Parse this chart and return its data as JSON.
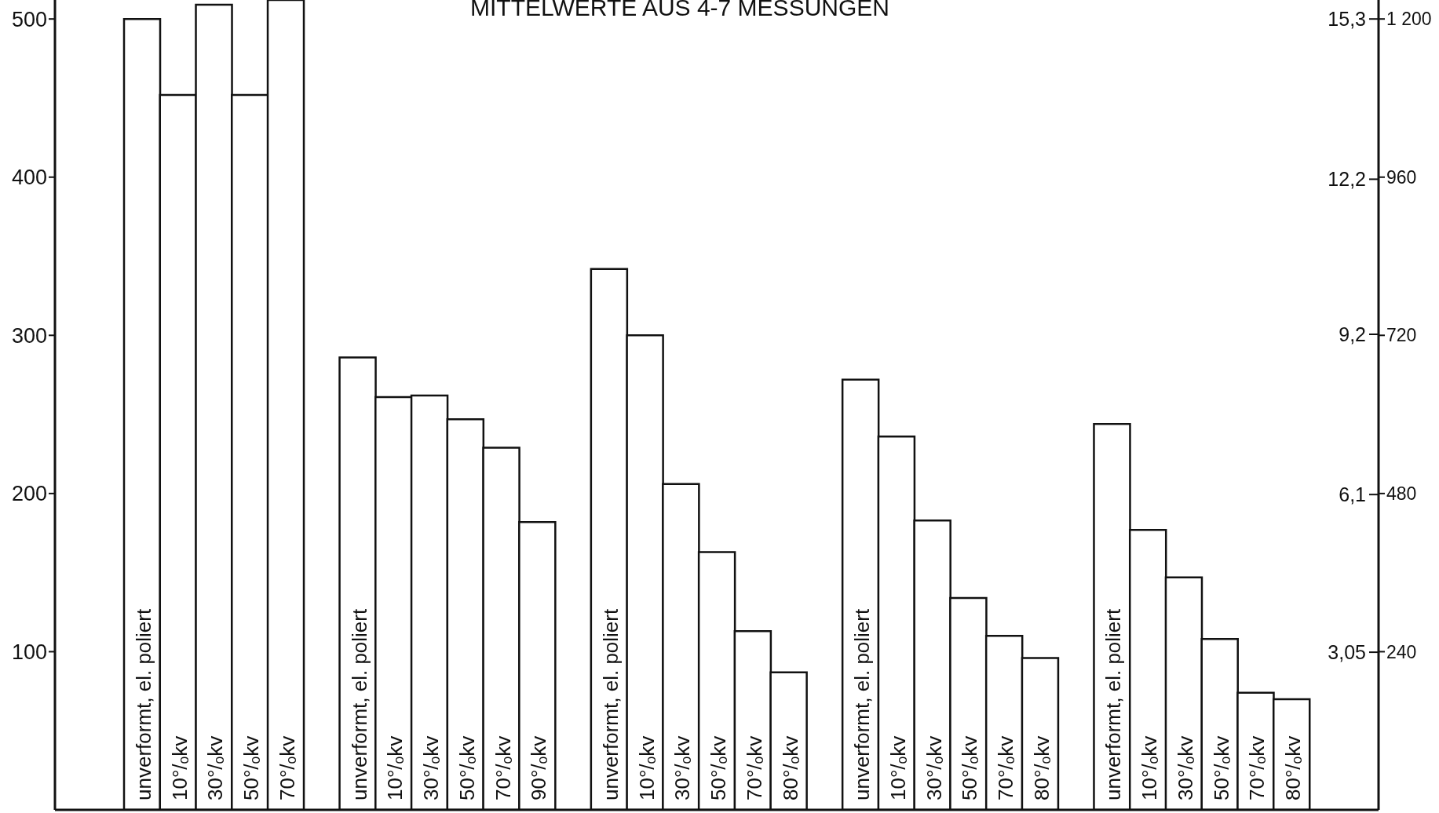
{
  "chart_data": {
    "type": "bar",
    "title": "MITTELWERTE AUS 4-7 MESSUNGEN",
    "categories": [
      "unverformt, el. poliert",
      "10°/ₒkv",
      "30°/ₒkv",
      "50°/ₒkv",
      "70°/ₒkv",
      null,
      "unverformt, el. poliert",
      "10°/ₒkv",
      "30°/ₒkv",
      "50°/ₒkv",
      "70°/ₒkv",
      "90°/ₒkv",
      null,
      "unverformt, el. poliert",
      "10°/ₒkv",
      "30°/ₒkv",
      "50°/ₒkv",
      "70°/ₒkv",
      "80°/ₒkv",
      null,
      "unverformt, el. poliert",
      "10°/ₒkv",
      "30°/ₒkv",
      "50°/ₒkv",
      "70°/ₒkv",
      "80°/ₒkv",
      null,
      "unverformt, el. poliert",
      "10°/ₒkv",
      "30°/ₒkv",
      "50°/ₒkv",
      "70°/ₒkv",
      "80°/ₒkv"
    ],
    "values": [
      500,
      452,
      509,
      452,
      512,
      null,
      286,
      261,
      262,
      247,
      229,
      182,
      null,
      342,
      300,
      206,
      163,
      113,
      87,
      null,
      272,
      236,
      183,
      134,
      110,
      96,
      null,
      244,
      177,
      147,
      108,
      74,
      70
    ],
    "color": "#ffffff",
    "ylim": [
      0,
      512
    ],
    "yticks": [
      100,
      200,
      300,
      400,
      500
    ],
    "y2lim": [
      0,
      1228.8
    ],
    "y2ticks": [
      {
        "value": 240,
        "label": "240"
      },
      {
        "value": 480,
        "label": "480"
      },
      {
        "value": 720,
        "label": "720"
      },
      {
        "value": 960,
        "label": "960"
      },
      {
        "value": 1200,
        "label": "1 200"
      }
    ],
    "y3lim": [
      0,
      15.6672
    ],
    "y3ticks": [
      {
        "value": 3.05,
        "label": "3,05"
      },
      {
        "value": 6.1,
        "label": "6,1"
      },
      {
        "value": 9.2,
        "label": "9,2"
      },
      {
        "value": 12.2,
        "label": "12,2"
      },
      {
        "value": 15.3,
        "label": "15,3"
      }
    ]
  }
}
